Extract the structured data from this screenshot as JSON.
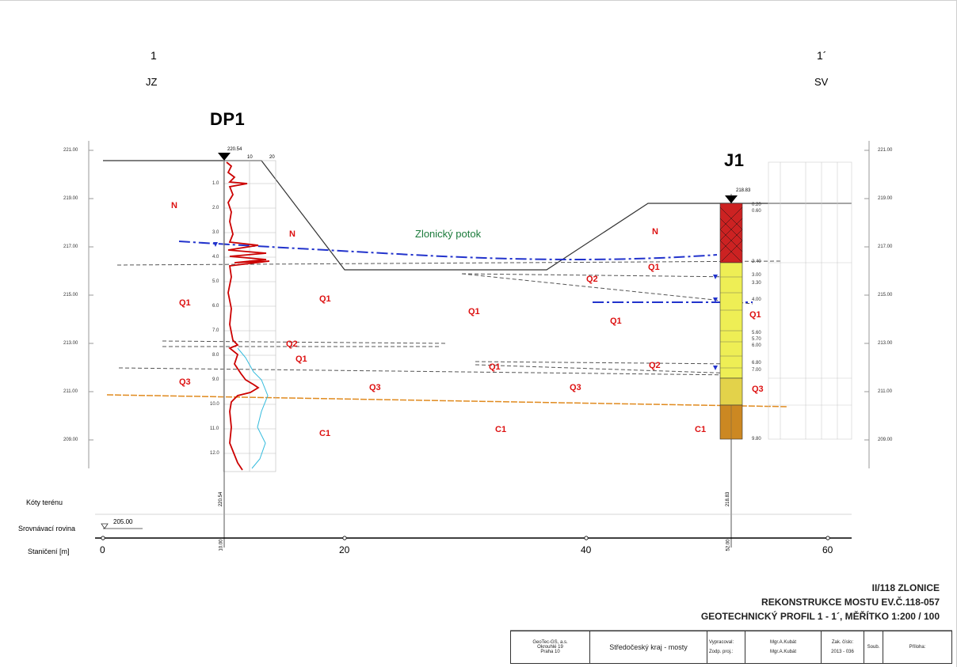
{
  "section": {
    "start_num": "1",
    "start_dir": "JZ",
    "end_num": "1´",
    "end_dir": "SV"
  },
  "boreholes": {
    "dp1": {
      "name": "DP1",
      "top_elev": "220.54",
      "scale_10": "10",
      "scale_20": "20"
    },
    "j1": {
      "name": "J1",
      "top_elev": "218.83"
    }
  },
  "elevation_ticks": [
    "221.00",
    "219.00",
    "217.00",
    "215.00",
    "213.00",
    "211.00",
    "209.00"
  ],
  "elevation_ticks_right": [
    "221.00",
    "219.00",
    "217.00",
    "215.00",
    "213.00",
    "211.00",
    "209.00"
  ],
  "dp1_depths": [
    "1.0",
    "2.0",
    "3.0",
    "4.0",
    "5.0",
    "6.0",
    "7.0",
    "8.0",
    "9.0",
    "10.0",
    "11.0",
    "12.0"
  ],
  "j1_depths": [
    "0.20",
    "0.60",
    "2.40",
    "3.00",
    "3.30",
    "4.00",
    "5.60",
    "5.70",
    "6.00",
    "6.80",
    "7.00",
    "9.80"
  ],
  "stream": "Zlonický potok",
  "layers": {
    "n1": "N",
    "n2": "N",
    "n3": "N",
    "q1_a": "Q1",
    "q1_b": "Q1",
    "q1_c": "Q1",
    "q1_d": "Q1",
    "q1_e": "Q1",
    "q1_f": "Q1",
    "q1_g": "Q1",
    "q1_h": "Q1",
    "q2_a": "Q2",
    "q2_b": "Q2",
    "q2_c": "Q2",
    "q3_a": "Q3",
    "q3_b": "Q3",
    "q3_c": "Q3",
    "q3_d": "Q3",
    "c1_a": "C1",
    "c1_b": "C1",
    "c1_c": "C1"
  },
  "bottom_axis": {
    "terrain_label": "Kóty terénu",
    "terrain_dp1": "220.54",
    "terrain_j1": "218.83",
    "datum_label": "Srovnávací rovina",
    "datum_value": "205.00",
    "station_label": "Staničení [m]",
    "station_dp1": "10.00",
    "station_j1": "52.00",
    "stations": [
      "0",
      "20",
      "40",
      "60"
    ]
  },
  "title": {
    "line1": "II/118 ZLONICE",
    "line2": "REKONSTRUKCE MOSTU EV.Č.118-057",
    "line3": "GEOTECHNICKÝ PROFIL 1 - 1´, MĚŘÍTKO 1:200 / 100"
  },
  "title_block": {
    "company": "GeoTec-GS, a.s.",
    "address1": "Okrouhlé 19",
    "address2": "Praha 10",
    "client": "Středočeský kraj - mosty",
    "prepared_label": "Vypracoval:",
    "prepared_name": "Mgr.A.Kubát",
    "resp_label": "Zodp. proj.:",
    "resp_name": "Mgr.A.Kubát",
    "order_label": "Zak. číslo:",
    "order_value": "2013 - 036",
    "set_label": "Soub.",
    "annex_label": "Příloha:"
  },
  "colors": {
    "layer_label": "#dd1111",
    "water_table": "#2233cc",
    "bedrock_line": "#e08a1e",
    "stream": "#1a7a3a",
    "dp1_log": "#cc0000",
    "dp1_log2": "#33bbdd",
    "j1_fill_top": "#cc2222",
    "j1_fill_mid": "#eeee55",
    "j1_fill_bot": "#cc8822"
  }
}
